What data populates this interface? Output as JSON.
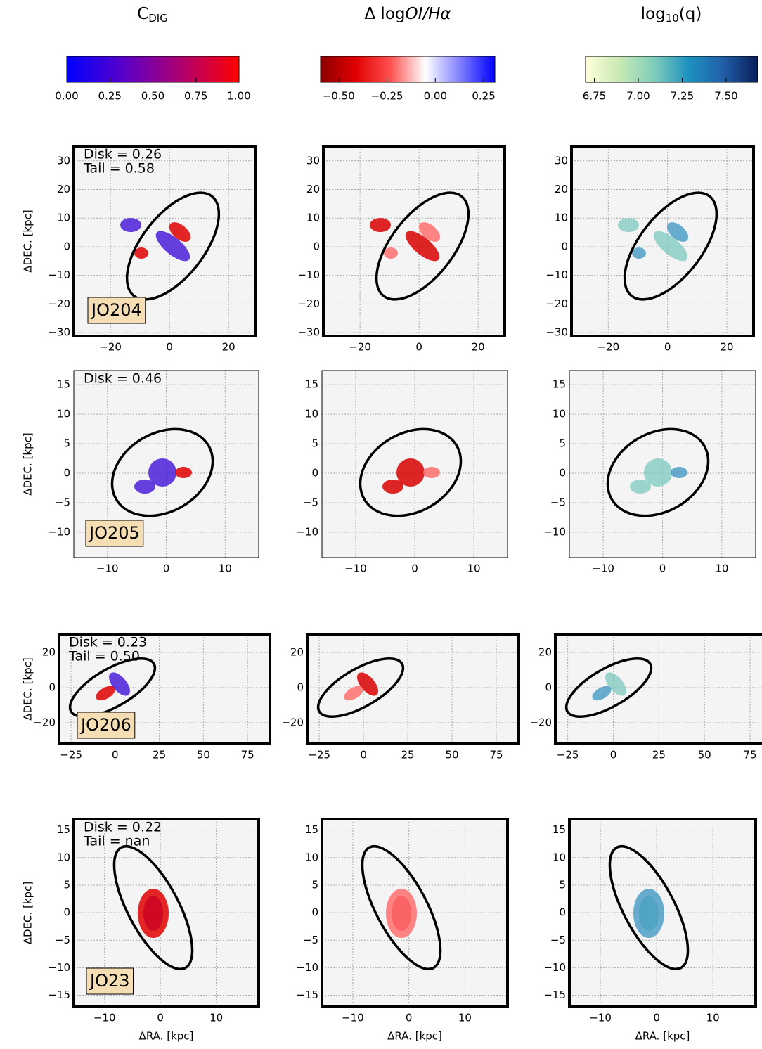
{
  "columns": [
    {
      "title": [
        {
          "text": "C"
        },
        {
          "text": "DIG",
          "style": "sub"
        }
      ],
      "colorbar": {
        "lim": [
          0,
          1
        ],
        "colors": [
          "#0000ff",
          "#5a00c8",
          "#b0006e",
          "#ff0000"
        ],
        "ticks": [
          {
            "value": 0,
            "label": "0.00"
          },
          {
            "value": 0.25,
            "label": "0.25"
          },
          {
            "value": 0.5,
            "label": "0.50"
          },
          {
            "value": 0.75,
            "label": "0.75"
          },
          {
            "value": 1,
            "label": "1.00"
          }
        ]
      }
    },
    {
      "title": [
        {
          "text": "Δ log"
        },
        {
          "text": "OI/Hα",
          "style": "italic"
        }
      ],
      "colorbar": {
        "lim": [
          -0.594,
          0.308
        ],
        "colors": [
          "#8b0000",
          "#e00000",
          "#ff5050",
          "#ffffff",
          "#8080ff",
          "#0000ff"
        ],
        "ticks": [
          {
            "value": -0.5,
            "label": "−0.50"
          },
          {
            "value": -0.25,
            "label": "−0.25"
          },
          {
            "value": 0,
            "label": "0.00"
          },
          {
            "value": 0.25,
            "label": "0.25"
          }
        ]
      }
    },
    {
      "title": [
        {
          "text": "log"
        },
        {
          "text": "10",
          "style": "sub"
        },
        {
          "text": "(q)"
        }
      ],
      "colorbar": {
        "lim": [
          6.7,
          7.68
        ],
        "colors": [
          "#ffffd9",
          "#c7e9b4",
          "#7fcdbb",
          "#1d91c0",
          "#225ea8",
          "#081d58"
        ],
        "ticks": [
          {
            "value": 6.75,
            "label": "6.75"
          },
          {
            "value": 7,
            "label": "7.00"
          },
          {
            "value": 7.25,
            "label": "7.25"
          },
          {
            "value": 7.5,
            "label": "7.50"
          }
        ]
      }
    }
  ],
  "x_label": "ΔRA. [kpc]",
  "y_label": "ΔDEC. [kpc]",
  "rows": [
    {
      "galaxy": "JO204",
      "annotations": [
        "Disk = 0.26",
        "Tail = 0.58"
      ],
      "xlim": [
        -32.4,
        29
      ],
      "ylim": [
        -31.2,
        35.1
      ],
      "xticks": [
        {
          "value": -20,
          "label": "−20"
        },
        0,
        20
      ],
      "yticks": [
        {
          "value": -30,
          "label": "−30"
        },
        {
          "value": -20,
          "label": "−20"
        },
        {
          "value": -10,
          "label": "−10"
        },
        0,
        10,
        20,
        30
      ]
    },
    {
      "galaxy": "JO205",
      "annotations": [
        "Disk = 0.46"
      ],
      "xlim": [
        -15.7,
        15.7
      ],
      "ylim": [
        -14.3,
        17.4
      ],
      "xticks": [
        {
          "value": -10,
          "label": "−10"
        },
        0,
        10
      ],
      "yticks": [
        {
          "value": -10,
          "label": "−10"
        },
        {
          "value": -5,
          "label": "−5"
        },
        0,
        5,
        10,
        15
      ]
    },
    {
      "galaxy": "JO206",
      "annotations": [
        "Disk = 0.23",
        "Tail = 0.50"
      ],
      "xlim": [
        -31.8,
        87.7
      ],
      "ylim": [
        -32,
        30.4
      ],
      "xticks": [
        {
          "value": -25,
          "label": "−25"
        },
        0,
        25,
        50,
        75
      ],
      "yticks": [
        {
          "value": -20,
          "label": "−20"
        },
        0,
        20
      ]
    },
    {
      "galaxy": "JO23",
      "annotations": [
        "Disk = 0.22",
        "Tail = nan"
      ],
      "xlim": [
        -15.5,
        17.6
      ],
      "ylim": [
        -17.1,
        17
      ],
      "xticks": [
        {
          "value": -10,
          "label": "−10"
        },
        0,
        10
      ],
      "yticks": [
        {
          "value": -15,
          "label": "−15"
        },
        {
          "value": -10,
          "label": "−10"
        },
        {
          "value": -5,
          "label": "−5"
        },
        0,
        5,
        10,
        15
      ]
    }
  ]
}
